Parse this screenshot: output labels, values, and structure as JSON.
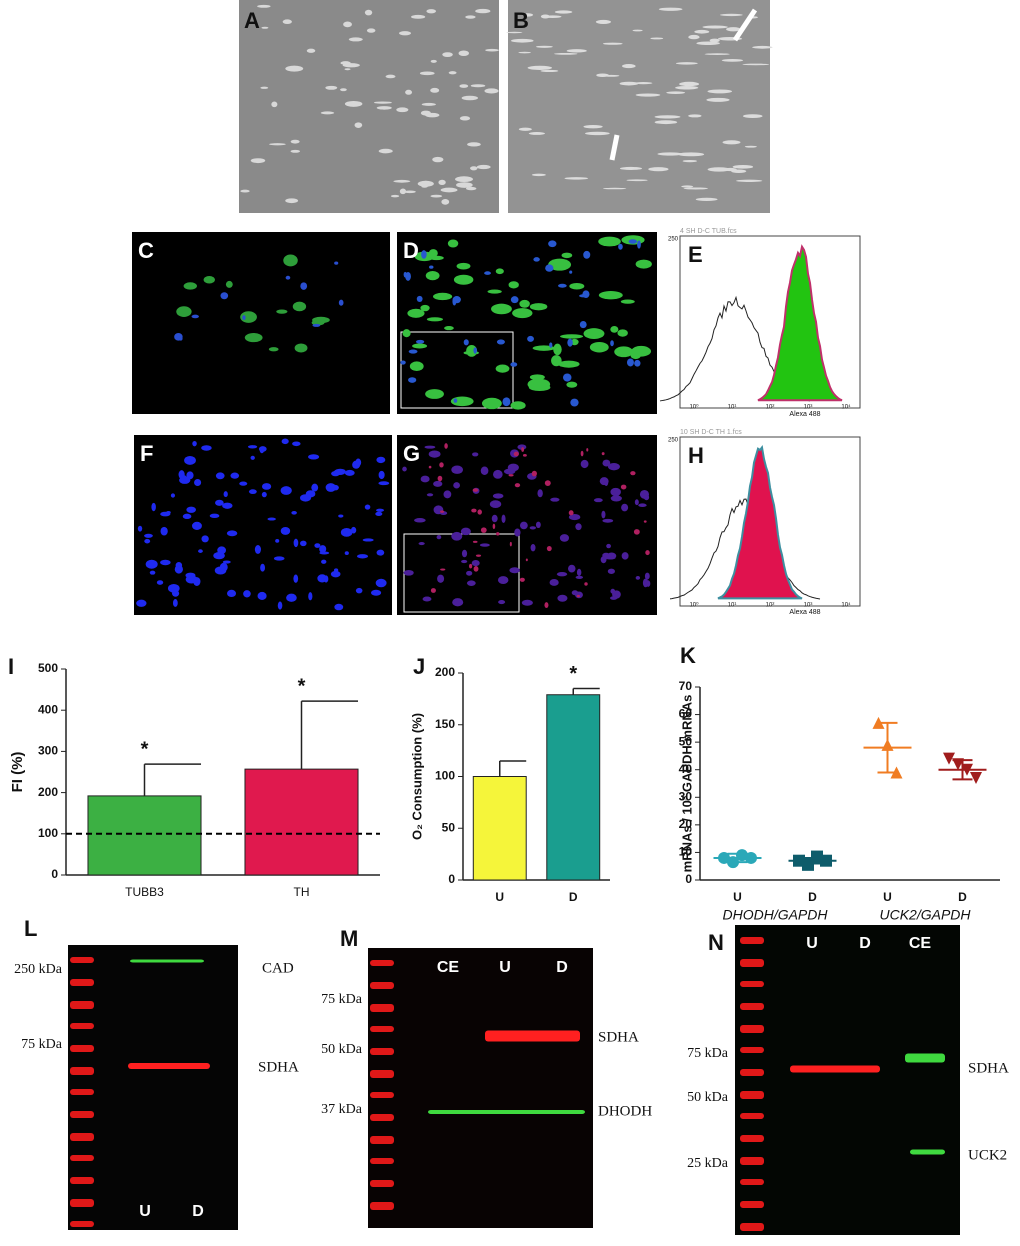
{
  "panel_labels": [
    "A",
    "B",
    "C",
    "D",
    "E",
    "F",
    "G",
    "H",
    "I",
    "J",
    "K",
    "L",
    "M",
    "N"
  ],
  "flow": [
    {
      "header": "4 SH D-C TUB.fcs",
      "x_label": "Alexa 488",
      "xtick_labels": [
        "10⁰",
        "10¹",
        "10²",
        "10³",
        "10⁴"
      ],
      "y_top": "250",
      "fill": "#22c411",
      "outline": "#c0306a"
    },
    {
      "header": "10 SH D-C TH 1.fcs",
      "x_label": "Alexa 488",
      "xtick_labels": [
        "10⁰",
        "10¹",
        "10²",
        "10³",
        "10⁴"
      ],
      "y_top": "250",
      "fill": "#e0124e",
      "outline": "#3d8fa0"
    }
  ],
  "chart_data": [
    {
      "type": "bar",
      "categories": [
        "TUBB3",
        "TH"
      ],
      "values": [
        192,
        257
      ],
      "errors": [
        77,
        165
      ],
      "colors": [
        "#3cb043",
        "#e0194e"
      ],
      "y_label": "FI (%)",
      "ylim": [
        0,
        500
      ],
      "yticks": [
        0,
        100,
        200,
        300,
        400,
        500
      ],
      "reference_line": 100,
      "annotations": [
        "*",
        "*"
      ]
    },
    {
      "type": "bar",
      "categories": [
        "U",
        "D"
      ],
      "values": [
        100,
        179
      ],
      "errors": [
        15,
        6
      ],
      "colors": [
        "#f5f53a",
        "#1a9e8f"
      ],
      "y_label": "O₂ Consumption (%)",
      "ylim": [
        0,
        200
      ],
      "yticks": [
        0,
        50,
        100,
        150,
        200
      ],
      "annotations": [
        null,
        "*"
      ]
    },
    {
      "type": "scatter",
      "categories": [
        "U",
        "D",
        "U",
        "D"
      ],
      "groups": [
        "DHODH/GAPDH",
        "UCK2/GAPDH"
      ],
      "y_label": "mRNAs / 10³ GAPDH mRNAs",
      "ylim": [
        0,
        70
      ],
      "yticks": [
        0,
        10,
        20,
        30,
        40,
        50,
        60,
        70
      ],
      "series": [
        {
          "color": "#2aa8b8",
          "marker": "circle",
          "values": [
            8,
            6.5,
            9,
            8
          ],
          "mean": 8,
          "sd": 1.5
        },
        {
          "color": "#0e5c6b",
          "marker": "square",
          "values": [
            7,
            5.5,
            8.5,
            7
          ],
          "mean": 7,
          "sd": 1
        },
        {
          "color": "#f07c22",
          "marker": "triangle-up",
          "values": [
            57,
            49,
            39
          ],
          "mean": 48,
          "sd": 9
        },
        {
          "color": "#a01c1c",
          "marker": "triangle-down",
          "values": [
            44,
            42,
            40,
            37
          ],
          "mean": 40,
          "sd": 3.5
        }
      ]
    }
  ],
  "blots": [
    {
      "markers": [
        "250 kDa",
        "75 kDa"
      ],
      "lanes": [
        "U",
        "D"
      ],
      "bands": [
        "CAD",
        "SDHA"
      ]
    },
    {
      "markers": [
        "75 kDa",
        "50 kDa",
        "37 kDa"
      ],
      "lanes": [
        "CE",
        "U",
        "D"
      ],
      "bands": [
        "SDHA",
        "DHODH"
      ]
    },
    {
      "markers": [
        "75 kDa",
        "50 kDa",
        "25 kDa"
      ],
      "lanes": [
        "U",
        "D",
        "CE"
      ],
      "bands": [
        "SDHA",
        "UCK2"
      ]
    }
  ]
}
